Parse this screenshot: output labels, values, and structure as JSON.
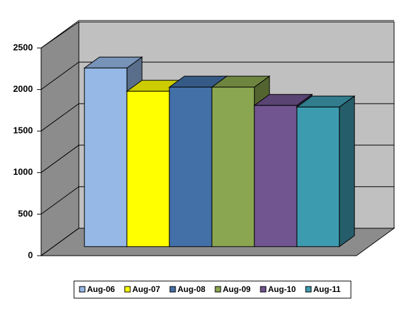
{
  "chart_data": {
    "type": "bar3d",
    "categories": [
      null
    ],
    "series": [
      {
        "name": "Aug-06",
        "color": "#95b8e6",
        "values": [
          2150
        ]
      },
      {
        "name": "Aug-07",
        "color": "#ffff00",
        "values": [
          1870
        ]
      },
      {
        "name": "Aug-08",
        "color": "#4470a8",
        "values": [
          1920
        ]
      },
      {
        "name": "Aug-09",
        "color": "#8aa650",
        "values": [
          1920
        ]
      },
      {
        "name": "Aug-10",
        "color": "#705590",
        "values": [
          1700
        ]
      },
      {
        "name": "Aug-11",
        "color": "#3d9bb0",
        "values": [
          1680
        ]
      }
    ],
    "ylim": [
      0,
      2500
    ],
    "yticks": [
      0,
      500,
      1000,
      1500,
      2000,
      2500
    ],
    "grid": true,
    "legend": "bottom"
  }
}
